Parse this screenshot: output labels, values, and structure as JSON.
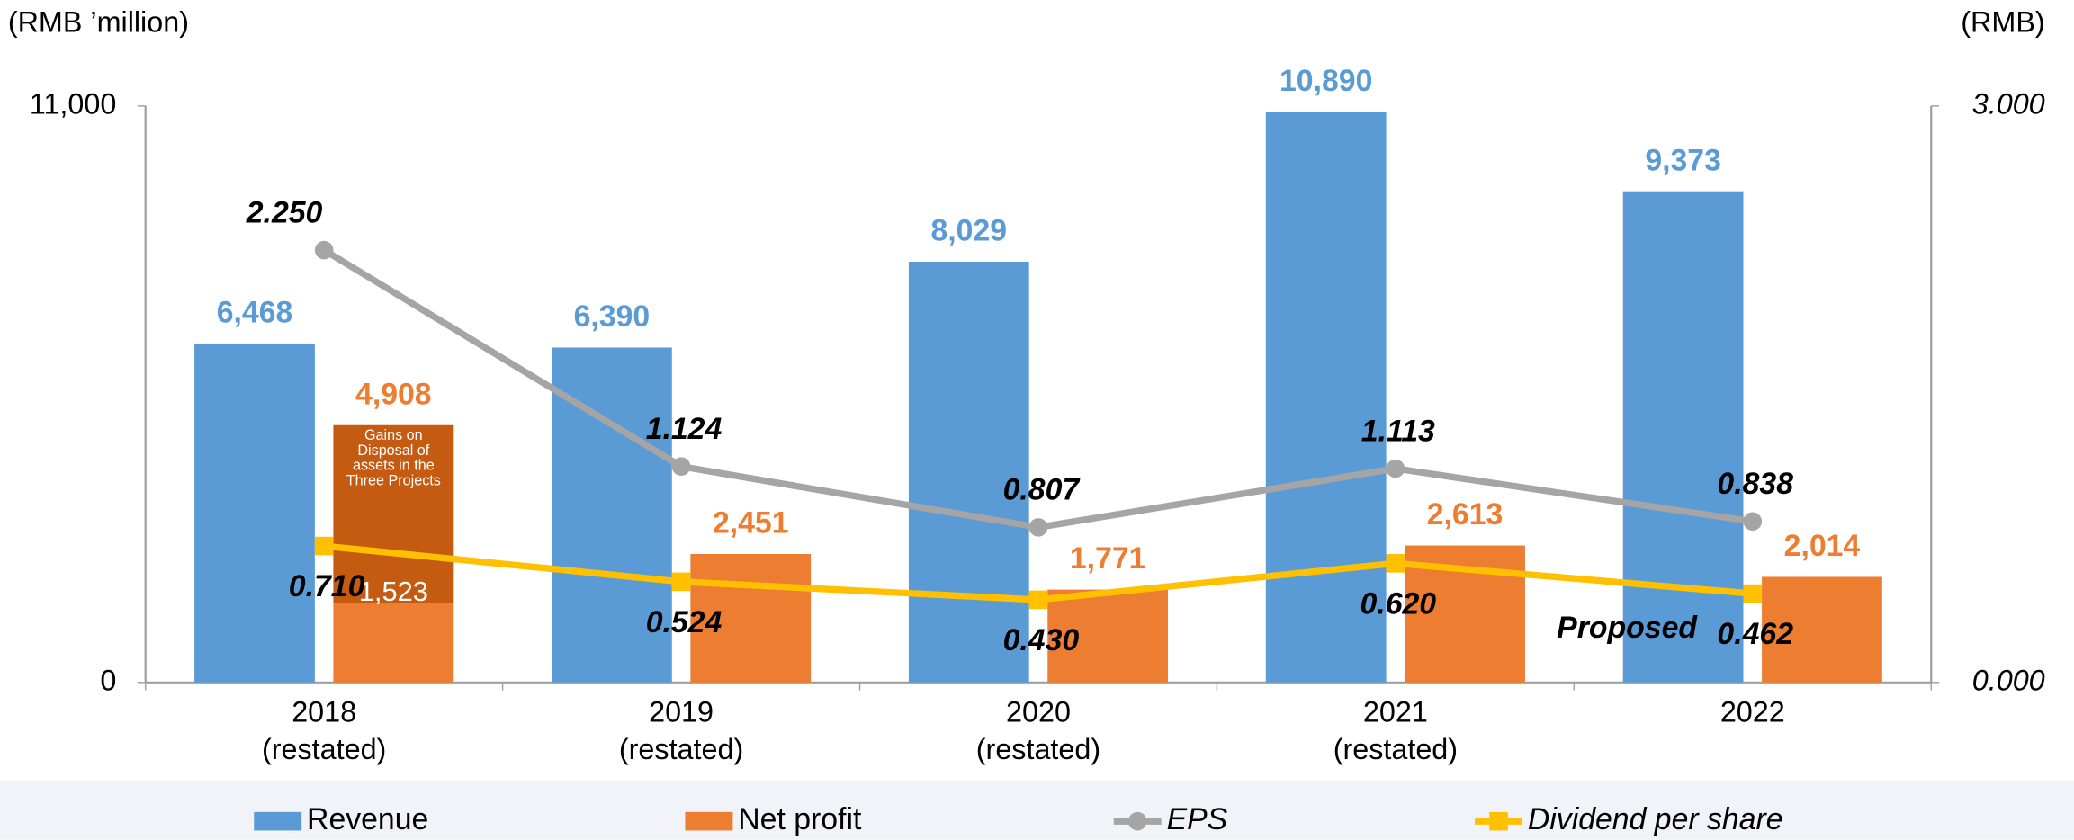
{
  "chart_data": {
    "type": "bar",
    "y_unit_label": "(RMB ’million)",
    "y2_unit_label": "(RMB)",
    "categories": [
      [
        "2018",
        "(restated)"
      ],
      [
        "2019",
        "(restated)"
      ],
      [
        "2020",
        "(restated)"
      ],
      [
        "2021",
        "(restated)"
      ],
      [
        "2022"
      ]
    ],
    "ylim": [
      0,
      11000
    ],
    "yticks": [
      0,
      {
        "value": 11000,
        "label": "11,000"
      }
    ],
    "y2lim": [
      0,
      3
    ],
    "y2ticks": [
      {
        "value": 0,
        "label": "0.000"
      },
      {
        "value": 3,
        "label": "3.000"
      }
    ],
    "series": [
      {
        "name": "Revenue",
        "type": "bar",
        "color": "#5b9bd5",
        "values": [
          6468,
          6390,
          8029,
          10890,
          9373
        ],
        "value_labels": [
          "6,468",
          "6,390",
          "8,029",
          "10,890",
          "9,373"
        ]
      },
      {
        "name": "Net profit",
        "type": "bar",
        "color": "#ed7d31",
        "values": [
          4908,
          2451,
          1771,
          2613,
          2014
        ],
        "value_labels": [
          "4,908",
          "2,451",
          "1,771",
          "2,613",
          "2,014"
        ],
        "breakdown": {
          "index": 0,
          "color": "#c55a11",
          "name_lines": [
            "Gains on",
            "Disposal of",
            "assets in the",
            "Three Projects"
          ],
          "base_value": 1523,
          "base_label": "1,523"
        }
      },
      {
        "name": "EPS",
        "type": "line",
        "axis": "y2",
        "color": "#a5a5a5",
        "marker": "circle",
        "values": [
          2.25,
          1.124,
          0.807,
          1.113,
          0.838
        ],
        "value_labels": [
          "2.250",
          "1.124",
          "0.807",
          "1.113",
          "0.838"
        ]
      },
      {
        "name": "Dividend per share",
        "type": "line",
        "axis": "y2",
        "color": "#ffc000",
        "marker": "square",
        "values": [
          0.71,
          0.524,
          0.43,
          0.62,
          0.462
        ],
        "value_labels": [
          "0.710",
          "0.524",
          "0.430",
          "0.620",
          "0.462"
        ]
      }
    ],
    "annotations": [
      {
        "text": "Proposed",
        "index": 4
      }
    ]
  }
}
